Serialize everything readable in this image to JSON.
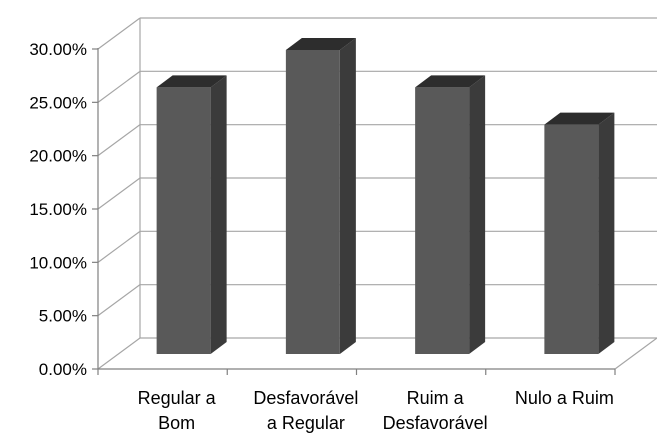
{
  "chart_data": {
    "type": "bar",
    "title": "",
    "xlabel": "",
    "ylabel": "",
    "categories": [
      [
        "Regular a",
        "Bom"
      ],
      [
        "Desfavorável",
        "a Regular"
      ],
      [
        "Ruim a",
        "Desfavorável"
      ],
      [
        "Nulo a Ruim"
      ]
    ],
    "values": [
      0.25,
      0.285,
      0.25,
      0.215
    ],
    "ylim": [
      0,
      0.3
    ],
    "yticks": [
      "0.00%",
      "5.00%",
      "10.00%",
      "15.00%",
      "20.00%",
      "25.00%",
      "30.00%"
    ],
    "grid": true,
    "legend": "none",
    "three_d": true,
    "colors": {
      "bar_front": "#595959",
      "bar_side": "#3b3b3b",
      "bar_top": "#2d2d2d",
      "grid": "#a6a6a6",
      "axis": "#808080"
    }
  }
}
